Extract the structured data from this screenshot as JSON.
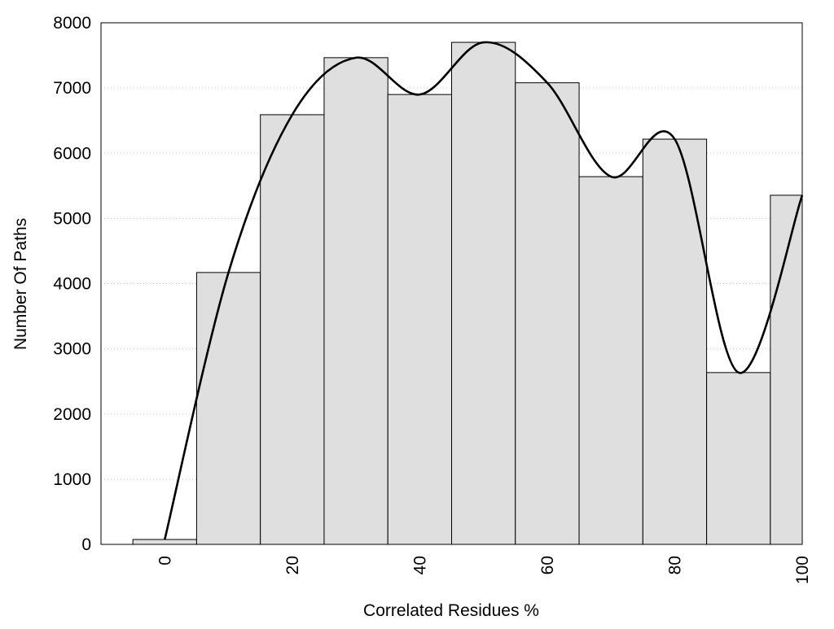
{
  "chart_data": {
    "type": "bar",
    "title": "",
    "xlabel": "Correlated Residues %",
    "ylabel": "Number Of Paths",
    "xlim": [
      -10,
      100
    ],
    "ylim": [
      0,
      8000
    ],
    "grid": "horizontal dotted",
    "bar_width": 10,
    "x": [
      0,
      10,
      20,
      30,
      40,
      50,
      60,
      70,
      80,
      90,
      100
    ],
    "values": [
      75,
      4170,
      6590,
      7465,
      6900,
      7700,
      7080,
      5640,
      6215,
      2635,
      5355
    ],
    "smooth_curve": "spline through bar tops",
    "xticks": [
      "0",
      "20",
      "40",
      "60",
      "80",
      "100"
    ],
    "yticks": [
      "0",
      "1000",
      "2000",
      "3000",
      "4000",
      "5000",
      "6000",
      "7000",
      "8000"
    ],
    "colors": {
      "bar_fill": "#dfdfdf",
      "bar_stroke": "#000000",
      "curve": "#000000",
      "grid": "#c8c8c8"
    }
  }
}
